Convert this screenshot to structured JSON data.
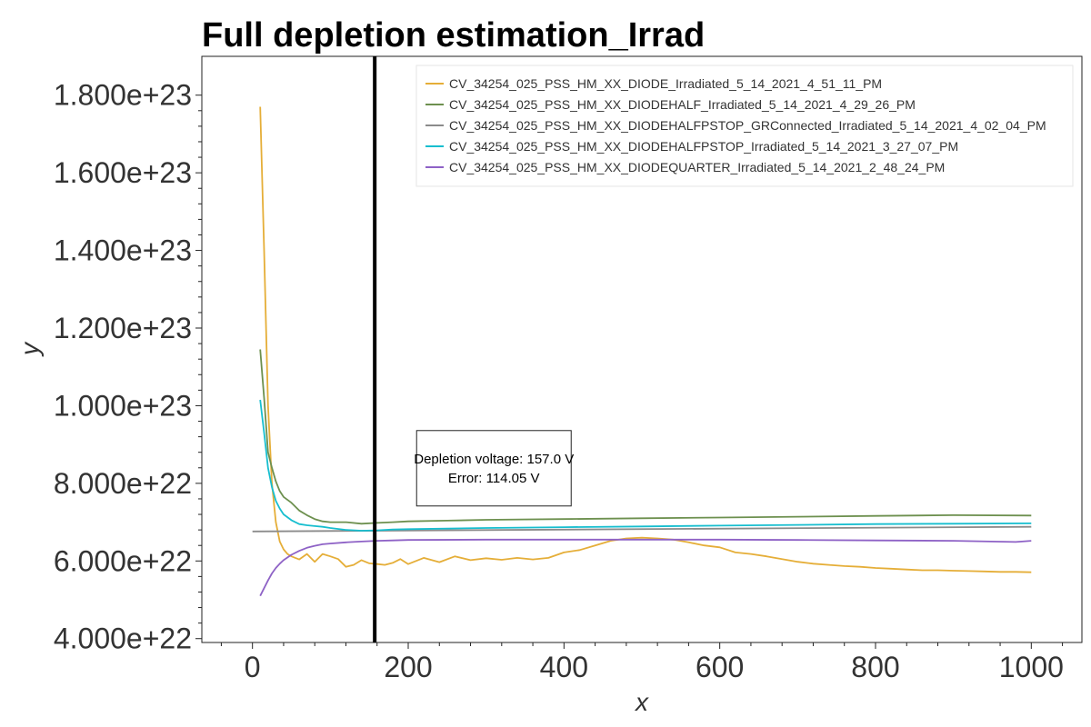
{
  "chart_data": {
    "type": "line",
    "title": "Full depletion estimation_Irrad",
    "xlabel": "x",
    "ylabel": "y",
    "xlim": [
      -65,
      1065
    ],
    "ylim": [
      39000000000000000000000,
      190000000000000000000000
    ],
    "xticks": [
      0,
      200,
      400,
      600,
      800,
      1000
    ],
    "xtick_labels": [
      "0",
      "200",
      "400",
      "600",
      "800",
      "1000"
    ],
    "yticks": [
      40000000000000000000000,
      60000000000000000000000,
      80000000000000000000000,
      100000000000000000000000,
      120000000000000000000000,
      140000000000000000000000,
      160000000000000000000000,
      180000000000000000000000
    ],
    "ytick_labels": [
      "4.000e+22",
      "6.000e+22",
      "8.000e+22",
      "1.000e+23",
      "1.200e+23",
      "1.400e+23",
      "1.600e+23",
      "1.800e+23"
    ],
    "grid": false,
    "legend_position": "top-right",
    "vline": {
      "x": 157.0,
      "color": "#000000"
    },
    "annotation": {
      "lines": [
        "Depletion voltage: 157.0 V",
        "Error: 114.05 V"
      ],
      "x": 310,
      "y": 84000000000000000000000
    },
    "series": [
      {
        "name": "CV_34254_025_PSS_HM_XX_DIODE_Irradiated_5_14_2021_4_51_11_PM",
        "color": "#e5ae38",
        "x": [
          10,
          15,
          20,
          25,
          30,
          35,
          40,
          45,
          50,
          55,
          60,
          70,
          80,
          90,
          100,
          110,
          120,
          130,
          140,
          150,
          160,
          170,
          180,
          190,
          200,
          220,
          240,
          260,
          280,
          300,
          320,
          340,
          360,
          380,
          400,
          420,
          440,
          460,
          480,
          500,
          520,
          540,
          560,
          580,
          600,
          620,
          640,
          660,
          680,
          700,
          720,
          740,
          760,
          780,
          800,
          820,
          840,
          860,
          880,
          900,
          920,
          940,
          960,
          980,
          1000
        ],
        "y": [
          177000000000000000000000,
          140000000000000000000000,
          100000000000000000000000,
          80000000000000000000000,
          70000000000000000000000,
          65000000000000000000000,
          63000000000000000000000,
          61800000000000000000000,
          61200000000000000000000,
          60800000000000000000000,
          60400000000000000000000,
          61800000000000000000000,
          59800000000000000000000,
          61800000000000000000000,
          61200000000000000000000,
          60500000000000000000000,
          58500000000000000000000,
          59000000000000000000000,
          60200000000000000000000,
          59400000000000000000000,
          59200000000000000000000,
          59000000000000000000000,
          59500000000000000000000,
          60500000000000000000000,
          59200000000000000000000,
          60800000000000000000000,
          59700000000000000000000,
          61200000000000000000000,
          60200000000000000000000,
          60700000000000000000000,
          60300000000000000000000,
          60800000000000000000000,
          60400000000000000000000,
          60800000000000000000000,
          62200000000000000000000,
          62800000000000000000000,
          64000000000000000000000,
          65200000000000000000000,
          65800000000000000000000,
          66000000000000000000000,
          65800000000000000000000,
          65500000000000000000000,
          64800000000000000000000,
          64000000000000000000000,
          63500000000000000000000,
          62200000000000000000000,
          61800000000000000000000,
          61200000000000000000000,
          60500000000000000000000,
          59800000000000000000000,
          59300000000000000000000,
          59000000000000000000000,
          58700000000000000000000,
          58500000000000000000000,
          58200000000000000000000,
          58000000000000000000000,
          57800000000000000000000,
          57600000000000000000000,
          57600000000000000000000,
          57500000000000000000000,
          57400000000000000000000,
          57300000000000000000000,
          57200000000000000000000,
          57200000000000000000000,
          57100000000000000000000
        ]
      },
      {
        "name": "CV_34254_025_PSS_HM_XX_DIODEHALF_Irradiated_5_14_2021_4_29_26_PM",
        "color": "#6d904f",
        "x": [
          10,
          15,
          20,
          25,
          30,
          35,
          40,
          50,
          60,
          70,
          80,
          90,
          100,
          120,
          140,
          160,
          180,
          200,
          250,
          300,
          400,
          500,
          600,
          700,
          800,
          900,
          1000
        ],
        "y": [
          114500000000000000000000,
          102000000000000000000000,
          88000000000000000000000,
          84000000000000000000000,
          80500000000000000000000,
          78000000000000000000000,
          76500000000000000000000,
          75000000000000000000000,
          73000000000000000000000,
          71800000000000000000000,
          70800000000000000000000,
          70200000000000000000000,
          70000000000000000000000,
          70000000000000000000000,
          69600000000000000000000,
          69800000000000000000000,
          70000000000000000000000,
          70200000000000000000000,
          70400000000000000000000,
          70600000000000000000000,
          70800000000000000000000,
          71000000000000000000000,
          71200000000000000000000,
          71400000000000000000000,
          71600000000000000000000,
          71800000000000000000000,
          71700000000000000000000
        ]
      },
      {
        "name": "CV_34254_025_PSS_HM_XX_DIODEHALFPSTOP_GRConnected_Irradiated_5_14_2021_4_02_04_PM",
        "color": "#8b8b8b",
        "x": [
          0,
          1000
        ],
        "y": [
          67600000000000000000000,
          68800000000000000000000
        ]
      },
      {
        "name": "CV_34254_025_PSS_HM_XX_DIODEHALFPSTOP_Irradiated_5_14_2021_3_27_07_PM",
        "color": "#17becf",
        "x": [
          10,
          15,
          20,
          25,
          30,
          35,
          40,
          50,
          60,
          70,
          80,
          90,
          100,
          120,
          140,
          160,
          180,
          200,
          300,
          400,
          500,
          600,
          700,
          800,
          900,
          1000
        ],
        "y": [
          101500000000000000000000,
          93000000000000000000000,
          84000000000000000000000,
          79000000000000000000000,
          75500000000000000000000,
          73500000000000000000000,
          72000000000000000000000,
          70500000000000000000000,
          69500000000000000000000,
          69200000000000000000000,
          69000000000000000000000,
          68800000000000000000000,
          68500000000000000000000,
          68000000000000000000000,
          67800000000000000000000,
          67900000000000000000000,
          68100000000000000000000,
          68200000000000000000000,
          68500000000000000000000,
          68700000000000000000000,
          68900000000000000000000,
          69100000000000000000000,
          69300000000000000000000,
          69500000000000000000000,
          69600000000000000000000,
          69700000000000000000000
        ]
      },
      {
        "name": "CV_34254_025_PSS_HM_XX_DIODEQUARTER_Irradiated_5_14_2021_2_48_24_PM",
        "color": "#8e62c6",
        "x": [
          10,
          15,
          20,
          25,
          30,
          35,
          40,
          50,
          60,
          70,
          80,
          90,
          100,
          120,
          140,
          160,
          180,
          200,
          300,
          400,
          500,
          600,
          700,
          800,
          900,
          980,
          1000
        ],
        "y": [
          51000000000000000000000,
          53000000000000000000000,
          55000000000000000000000,
          56800000000000000000000,
          58200000000000000000000,
          59300000000000000000000,
          60200000000000000000000,
          61600000000000000000000,
          62600000000000000000000,
          63400000000000000000000,
          63900000000000000000000,
          64300000000000000000000,
          64500000000000000000000,
          64800000000000000000000,
          65000000000000000000000,
          65200000000000000000000,
          65300000000000000000000,
          65400000000000000000000,
          65500000000000000000000,
          65500000000000000000000,
          65500000000000000000000,
          65500000000000000000000,
          65400000000000000000000,
          65300000000000000000000,
          65200000000000000000000,
          64900000000000000000000,
          65200000000000000000000
        ]
      }
    ]
  }
}
